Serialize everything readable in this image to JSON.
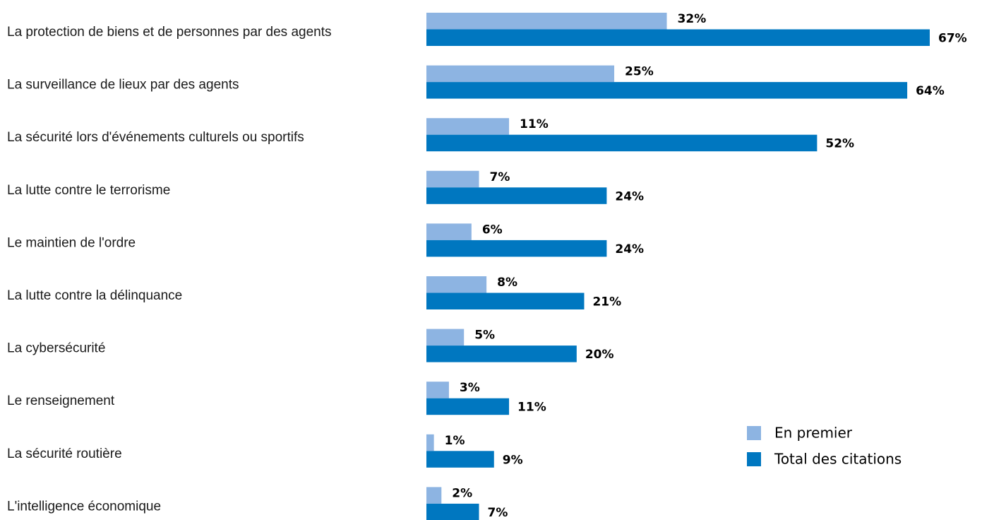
{
  "chart_data": {
    "type": "bar",
    "orientation": "horizontal",
    "categories": [
      "La protection de biens et de personnes par des agents",
      "La surveillance de lieux par des agents",
      "La sécurité lors d'événements culturels ou sportifs",
      "La lutte contre le terrorisme",
      "Le maintien de l'ordre",
      "La lutte contre la délinquance",
      "La cybersécurité",
      "Le renseignement",
      "La sécurité routière",
      "L'intelligence économique"
    ],
    "series": [
      {
        "name": "En premier",
        "color": "#8db4e2",
        "values": [
          32,
          25,
          11,
          7,
          6,
          8,
          5,
          3,
          1,
          2
        ],
        "value_labels": [
          "32%",
          "25%",
          "11%",
          "7%",
          "6%",
          "8%",
          "5%",
          "3%",
          "1%",
          "2%"
        ]
      },
      {
        "name": "Total des citations",
        "color": "#0077c0",
        "values": [
          67,
          64,
          52,
          24,
          24,
          21,
          20,
          11,
          9,
          7
        ],
        "value_labels": [
          "67%",
          "64%",
          "52%",
          "24%",
          "24%",
          "21%",
          "20%",
          "11%",
          "9%",
          "7%"
        ]
      }
    ],
    "legend": "lower right"
  }
}
